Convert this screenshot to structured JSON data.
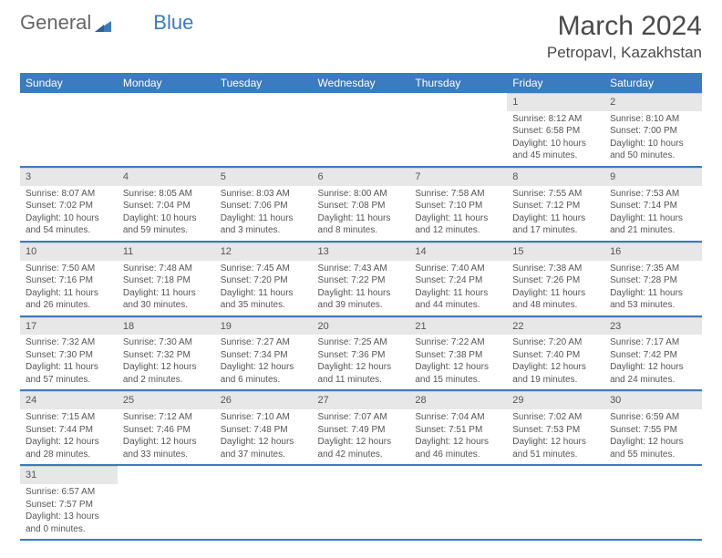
{
  "brand": {
    "part1": "General",
    "part2": "Blue"
  },
  "colors": {
    "accent": "#3b7bbf",
    "dayHeader": "#e7e7e7",
    "text": "#4a4a4a"
  },
  "title": "March 2024",
  "location": "Petropavl, Kazakhstan",
  "weekdays": [
    "Sunday",
    "Monday",
    "Tuesday",
    "Wednesday",
    "Thursday",
    "Friday",
    "Saturday"
  ],
  "weeks": [
    [
      null,
      null,
      null,
      null,
      null,
      {
        "n": "1",
        "sr": "Sunrise: 8:12 AM",
        "ss": "Sunset: 6:58 PM",
        "dl": "Daylight: 10 hours and 45 minutes."
      },
      {
        "n": "2",
        "sr": "Sunrise: 8:10 AM",
        "ss": "Sunset: 7:00 PM",
        "dl": "Daylight: 10 hours and 50 minutes."
      }
    ],
    [
      {
        "n": "3",
        "sr": "Sunrise: 8:07 AM",
        "ss": "Sunset: 7:02 PM",
        "dl": "Daylight: 10 hours and 54 minutes."
      },
      {
        "n": "4",
        "sr": "Sunrise: 8:05 AM",
        "ss": "Sunset: 7:04 PM",
        "dl": "Daylight: 10 hours and 59 minutes."
      },
      {
        "n": "5",
        "sr": "Sunrise: 8:03 AM",
        "ss": "Sunset: 7:06 PM",
        "dl": "Daylight: 11 hours and 3 minutes."
      },
      {
        "n": "6",
        "sr": "Sunrise: 8:00 AM",
        "ss": "Sunset: 7:08 PM",
        "dl": "Daylight: 11 hours and 8 minutes."
      },
      {
        "n": "7",
        "sr": "Sunrise: 7:58 AM",
        "ss": "Sunset: 7:10 PM",
        "dl": "Daylight: 11 hours and 12 minutes."
      },
      {
        "n": "8",
        "sr": "Sunrise: 7:55 AM",
        "ss": "Sunset: 7:12 PM",
        "dl": "Daylight: 11 hours and 17 minutes."
      },
      {
        "n": "9",
        "sr": "Sunrise: 7:53 AM",
        "ss": "Sunset: 7:14 PM",
        "dl": "Daylight: 11 hours and 21 minutes."
      }
    ],
    [
      {
        "n": "10",
        "sr": "Sunrise: 7:50 AM",
        "ss": "Sunset: 7:16 PM",
        "dl": "Daylight: 11 hours and 26 minutes."
      },
      {
        "n": "11",
        "sr": "Sunrise: 7:48 AM",
        "ss": "Sunset: 7:18 PM",
        "dl": "Daylight: 11 hours and 30 minutes."
      },
      {
        "n": "12",
        "sr": "Sunrise: 7:45 AM",
        "ss": "Sunset: 7:20 PM",
        "dl": "Daylight: 11 hours and 35 minutes."
      },
      {
        "n": "13",
        "sr": "Sunrise: 7:43 AM",
        "ss": "Sunset: 7:22 PM",
        "dl": "Daylight: 11 hours and 39 minutes."
      },
      {
        "n": "14",
        "sr": "Sunrise: 7:40 AM",
        "ss": "Sunset: 7:24 PM",
        "dl": "Daylight: 11 hours and 44 minutes."
      },
      {
        "n": "15",
        "sr": "Sunrise: 7:38 AM",
        "ss": "Sunset: 7:26 PM",
        "dl": "Daylight: 11 hours and 48 minutes."
      },
      {
        "n": "16",
        "sr": "Sunrise: 7:35 AM",
        "ss": "Sunset: 7:28 PM",
        "dl": "Daylight: 11 hours and 53 minutes."
      }
    ],
    [
      {
        "n": "17",
        "sr": "Sunrise: 7:32 AM",
        "ss": "Sunset: 7:30 PM",
        "dl": "Daylight: 11 hours and 57 minutes."
      },
      {
        "n": "18",
        "sr": "Sunrise: 7:30 AM",
        "ss": "Sunset: 7:32 PM",
        "dl": "Daylight: 12 hours and 2 minutes."
      },
      {
        "n": "19",
        "sr": "Sunrise: 7:27 AM",
        "ss": "Sunset: 7:34 PM",
        "dl": "Daylight: 12 hours and 6 minutes."
      },
      {
        "n": "20",
        "sr": "Sunrise: 7:25 AM",
        "ss": "Sunset: 7:36 PM",
        "dl": "Daylight: 12 hours and 11 minutes."
      },
      {
        "n": "21",
        "sr": "Sunrise: 7:22 AM",
        "ss": "Sunset: 7:38 PM",
        "dl": "Daylight: 12 hours and 15 minutes."
      },
      {
        "n": "22",
        "sr": "Sunrise: 7:20 AM",
        "ss": "Sunset: 7:40 PM",
        "dl": "Daylight: 12 hours and 19 minutes."
      },
      {
        "n": "23",
        "sr": "Sunrise: 7:17 AM",
        "ss": "Sunset: 7:42 PM",
        "dl": "Daylight: 12 hours and 24 minutes."
      }
    ],
    [
      {
        "n": "24",
        "sr": "Sunrise: 7:15 AM",
        "ss": "Sunset: 7:44 PM",
        "dl": "Daylight: 12 hours and 28 minutes."
      },
      {
        "n": "25",
        "sr": "Sunrise: 7:12 AM",
        "ss": "Sunset: 7:46 PM",
        "dl": "Daylight: 12 hours and 33 minutes."
      },
      {
        "n": "26",
        "sr": "Sunrise: 7:10 AM",
        "ss": "Sunset: 7:48 PM",
        "dl": "Daylight: 12 hours and 37 minutes."
      },
      {
        "n": "27",
        "sr": "Sunrise: 7:07 AM",
        "ss": "Sunset: 7:49 PM",
        "dl": "Daylight: 12 hours and 42 minutes."
      },
      {
        "n": "28",
        "sr": "Sunrise: 7:04 AM",
        "ss": "Sunset: 7:51 PM",
        "dl": "Daylight: 12 hours and 46 minutes."
      },
      {
        "n": "29",
        "sr": "Sunrise: 7:02 AM",
        "ss": "Sunset: 7:53 PM",
        "dl": "Daylight: 12 hours and 51 minutes."
      },
      {
        "n": "30",
        "sr": "Sunrise: 6:59 AM",
        "ss": "Sunset: 7:55 PM",
        "dl": "Daylight: 12 hours and 55 minutes."
      }
    ],
    [
      {
        "n": "31",
        "sr": "Sunrise: 6:57 AM",
        "ss": "Sunset: 7:57 PM",
        "dl": "Daylight: 13 hours and 0 minutes."
      },
      null,
      null,
      null,
      null,
      null,
      null
    ]
  ]
}
